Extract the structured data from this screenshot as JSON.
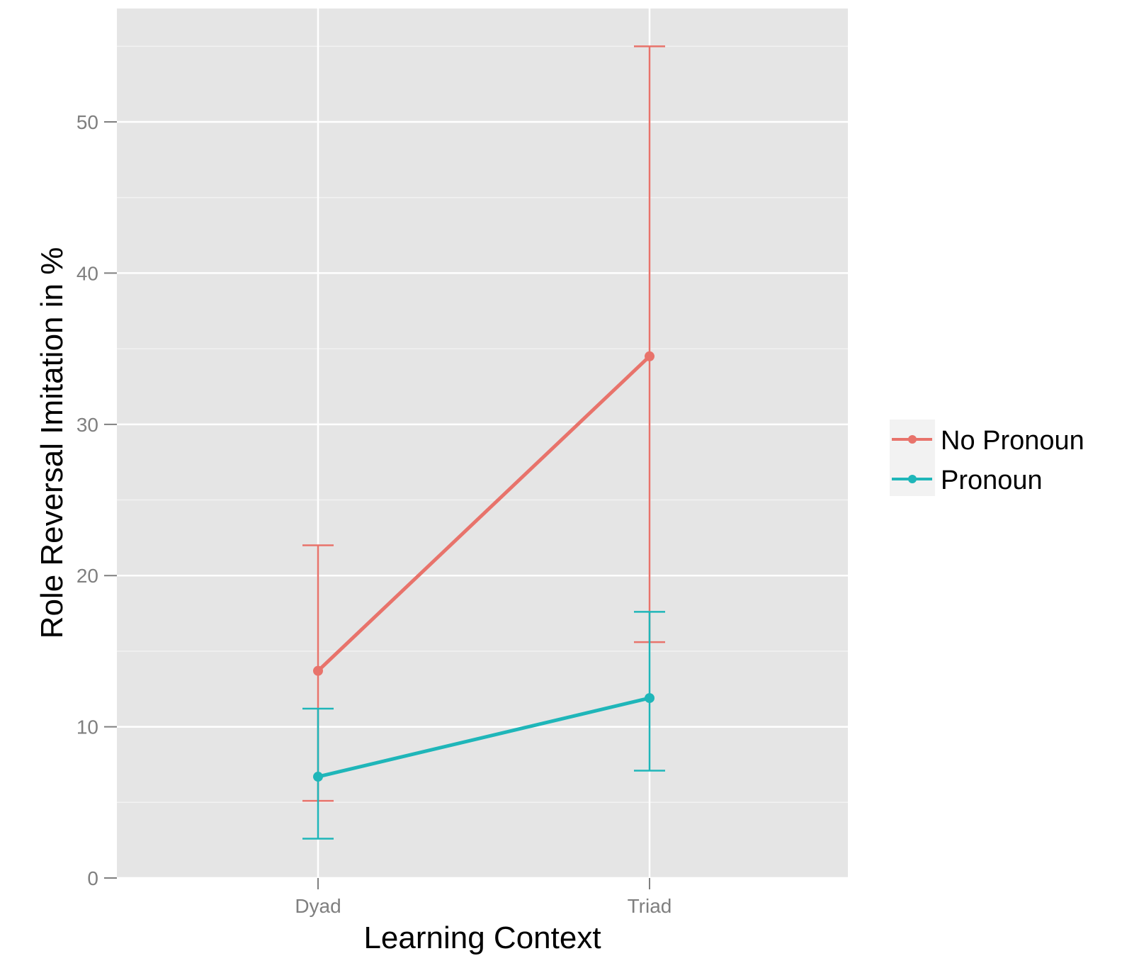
{
  "chart_data": {
    "type": "line",
    "categories": [
      "Dyad",
      "Triad"
    ],
    "xlabel": "Learning Context",
    "ylabel": "Role Reversal Imitation in %",
    "ylim": [
      0,
      57.5
    ],
    "yticks": [
      0,
      10,
      20,
      30,
      40,
      50
    ],
    "grid": true,
    "legend_position": "right",
    "error_bars": true,
    "series": [
      {
        "name": "No Pronoun",
        "color": "#e8736b",
        "values": [
          13.7,
          34.5
        ],
        "error_low": [
          5.1,
          15.6
        ],
        "error_high": [
          22.0,
          55.0
        ]
      },
      {
        "name": "Pronoun",
        "color": "#1fb6b9",
        "values": [
          6.7,
          11.9
        ],
        "error_low": [
          2.6,
          7.1
        ],
        "error_high": [
          11.2,
          17.6
        ]
      }
    ]
  }
}
